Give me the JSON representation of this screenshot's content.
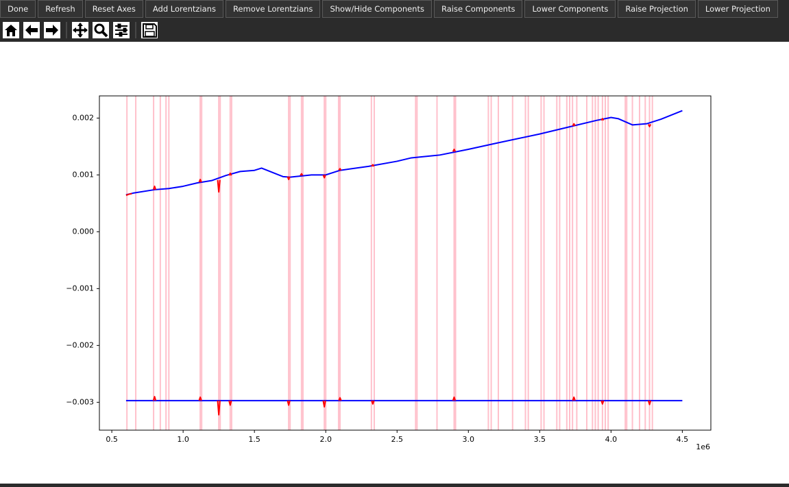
{
  "toolbar": {
    "buttons": [
      "Done",
      "Refresh",
      "Reset Axes",
      "Add Lorentzians",
      "Remove Lorentzians",
      "Show/Hide Components",
      "Raise Components",
      "Lower Components",
      "Raise Projection",
      "Lower Projection"
    ]
  },
  "chart_data": {
    "type": "line",
    "x_offset_label": "1e6",
    "xlim": [
      0.413,
      4.7
    ],
    "ylim": [
      -0.00349,
      0.00239
    ],
    "xticks": [
      0.5,
      {
        "value": 1,
        "label": "1.0"
      },
      1.5,
      {
        "value": 2,
        "label": "2.0"
      },
      2.5,
      {
        "value": 3,
        "label": "3.0"
      },
      3.5,
      {
        "value": 4,
        "label": "4.0"
      },
      4.5
    ],
    "yticks": [
      {
        "value": -0.003,
        "label": "−0.003"
      },
      {
        "value": -0.002,
        "label": "−0.002"
      },
      {
        "value": -0.001,
        "label": "−0.001"
      },
      {
        "value": 0,
        "label": "0.000"
      },
      0.001,
      0.002
    ],
    "highlight_color": "#ffc0cb",
    "highlight_x": [
      0.606,
      0.668,
      0.793,
      0.84,
      0.88,
      0.9,
      1.12,
      1.13,
      1.25,
      1.26,
      1.33,
      1.34,
      1.74,
      1.75,
      1.83,
      1.84,
      1.99,
      2.0,
      2.09,
      2.1,
      2.32,
      2.34,
      2.63,
      2.64,
      2.78,
      2.9,
      2.91,
      3.14,
      3.16,
      3.21,
      3.31,
      3.4,
      3.42,
      3.51,
      3.53,
      3.62,
      3.64,
      3.69,
      3.71,
      3.73,
      3.76,
      3.83,
      3.87,
      3.89,
      3.91,
      3.94,
      3.96,
      3.98,
      4.1,
      4.11,
      4.15,
      4.2,
      4.24,
      4.27,
      4.29
    ],
    "series": [
      {
        "color": "#0000ff",
        "x": [
          0.6,
          0.65,
          0.8,
          0.9,
          1.0,
          1.1,
          1.2,
          1.3,
          1.4,
          1.5,
          1.55,
          1.6,
          1.7,
          1.75,
          1.9,
          2.0,
          2.1,
          2.3,
          2.5,
          2.6,
          2.8,
          3.0,
          3.2,
          3.5,
          3.7,
          3.9,
          4.0,
          4.05,
          4.15,
          4.25,
          4.35,
          4.5
        ],
        "values": [
          0.00065,
          0.00068,
          0.00074,
          0.00076,
          0.0008,
          0.00086,
          0.0009,
          0.00099,
          0.00106,
          0.00108,
          0.00112,
          0.00107,
          0.00097,
          0.00096,
          0.001,
          0.001,
          0.00108,
          0.00115,
          0.00124,
          0.0013,
          0.00135,
          0.00145,
          0.00156,
          0.00172,
          0.00184,
          0.00196,
          0.00201,
          0.00199,
          0.00188,
          0.0019,
          0.00198,
          0.00213
        ]
      },
      {
        "color": "#0000ff",
        "x": [
          0.6,
          1.0,
          1.5,
          2.0,
          2.5,
          3.0,
          3.5,
          4.0,
          4.5
        ],
        "values": [
          -0.00297,
          -0.00297,
          -0.00297,
          -0.00297,
          -0.00297,
          -0.00297,
          -0.00297,
          -0.00297,
          -0.00297
        ]
      },
      {
        "color": "#ff0000",
        "x": [
          0.6,
          0.62,
          0.64,
          null,
          0.792,
          0.8,
          0.808,
          null,
          1.112,
          1.12,
          1.128,
          null,
          1.242,
          1.25,
          1.258,
          null,
          1.322,
          1.33,
          1.338,
          null,
          1.732,
          1.74,
          1.748,
          null,
          1.822,
          1.83,
          1.838,
          null,
          1.982,
          1.99,
          1.998,
          null,
          2.092,
          2.1,
          2.108,
          null,
          2.322,
          2.33,
          2.338,
          null,
          2.892,
          2.9,
          2.908,
          null,
          3.732,
          3.74,
          3.748,
          null,
          3.932,
          3.94,
          3.948,
          null,
          4.262,
          4.27,
          4.278
        ],
        "values": [
          0.00064,
          0.00066,
          0.00067,
          null,
          0.00074,
          0.0008,
          0.00074,
          null,
          0.00087,
          0.00092,
          0.00087,
          null,
          0.00091,
          0.0007,
          0.00091,
          null,
          0.00099,
          0.00103,
          0.00099,
          null,
          0.00097,
          0.00092,
          0.00097,
          null,
          0.00099,
          0.00102,
          0.00099,
          null,
          0.001,
          0.00095,
          0.001,
          null,
          0.00108,
          0.00111,
          0.00108,
          null,
          0.00115,
          0.00118,
          0.00115,
          null,
          0.00141,
          0.00145,
          0.00141,
          null,
          0.00186,
          0.0019,
          0.00186,
          null,
          0.00196,
          0.00199,
          0.00196,
          null,
          0.00189,
          0.00185,
          0.00189
        ]
      },
      {
        "color": "#ff0000",
        "x": [
          0.792,
          0.8,
          0.808,
          null,
          1.112,
          1.12,
          1.128,
          null,
          1.242,
          1.25,
          1.258,
          null,
          1.322,
          1.33,
          1.338,
          null,
          1.732,
          1.74,
          1.748,
          null,
          1.982,
          1.99,
          1.998,
          null,
          2.092,
          2.1,
          2.108,
          null,
          2.322,
          2.33,
          2.338,
          null,
          2.892,
          2.9,
          2.908,
          null,
          3.732,
          3.74,
          3.748,
          null,
          3.932,
          3.94,
          3.948,
          null,
          4.262,
          4.27,
          4.278
        ],
        "values": [
          -0.00297,
          -0.0029,
          -0.00297,
          null,
          -0.00297,
          -0.00291,
          -0.00297,
          null,
          -0.00297,
          -0.00322,
          -0.00297,
          null,
          -0.00297,
          -0.00305,
          -0.00297,
          null,
          -0.00297,
          -0.00305,
          -0.00297,
          null,
          -0.00297,
          -0.00308,
          -0.00297,
          null,
          -0.00297,
          -0.00292,
          -0.00297,
          null,
          -0.00297,
          -0.00303,
          -0.00297,
          null,
          -0.00297,
          -0.00291,
          -0.00297,
          null,
          -0.00297,
          -0.00291,
          -0.00297,
          null,
          -0.00297,
          -0.00303,
          -0.00297,
          null,
          -0.00297,
          -0.00304,
          -0.00297
        ]
      }
    ]
  }
}
